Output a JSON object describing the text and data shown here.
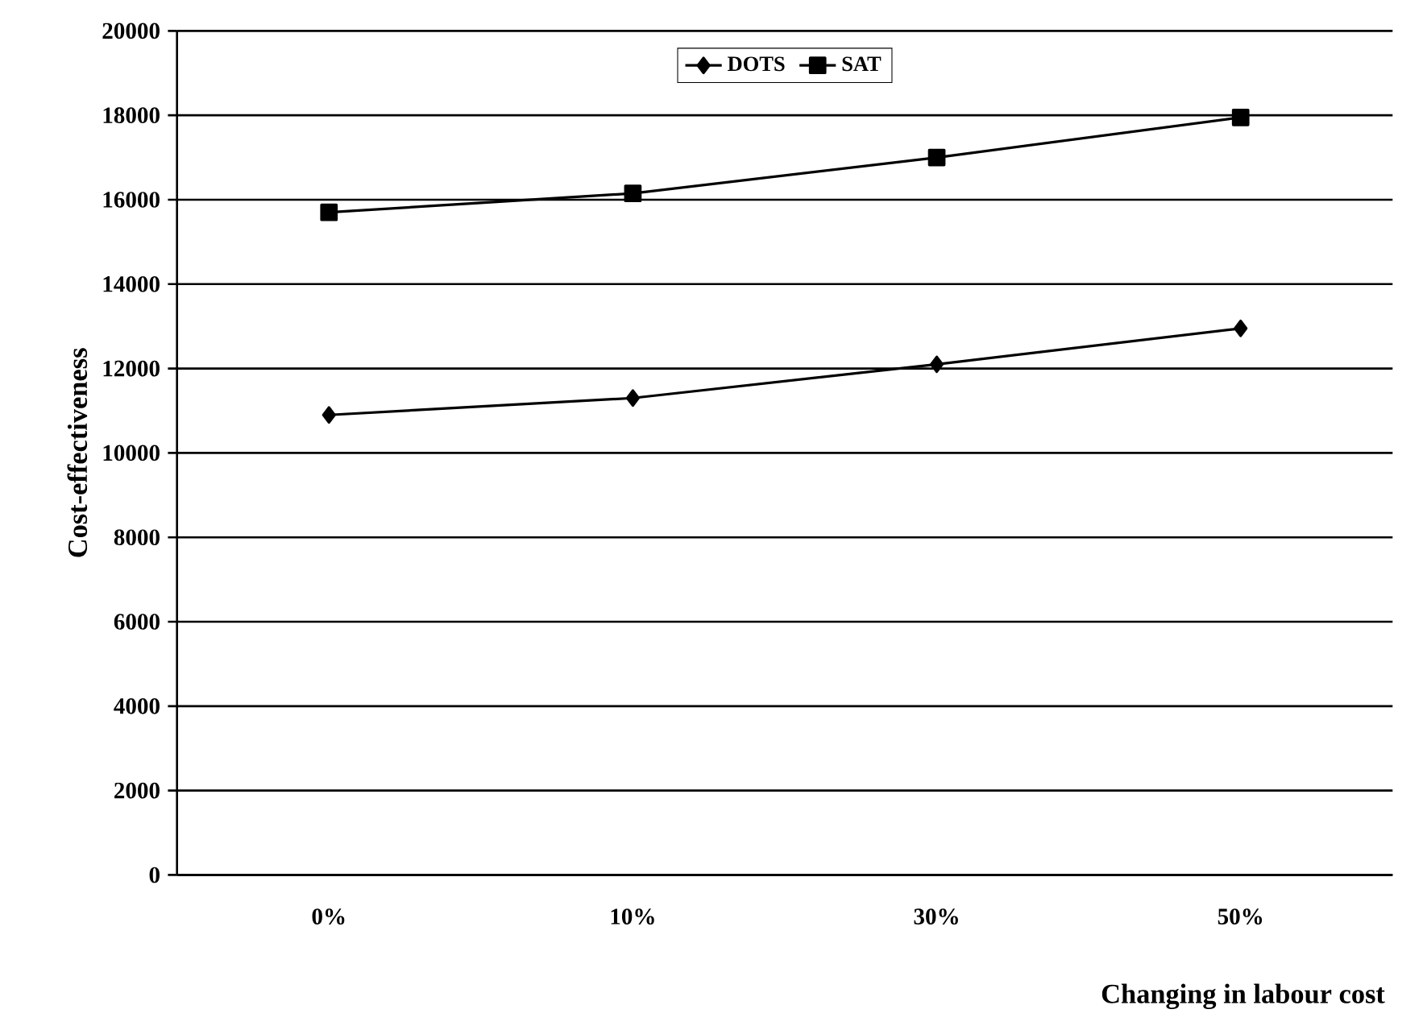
{
  "chart_data": {
    "type": "line",
    "xlabel": "Changing in labour cost",
    "ylabel": "Cost-effectiveness",
    "categories": [
      "0%",
      "10%",
      "30%",
      "50%"
    ],
    "series": [
      {
        "name": "DOTS",
        "color": "#000000",
        "marker": "diamond",
        "values": [
          10900,
          11300,
          12100,
          12950
        ]
      },
      {
        "name": "SAT",
        "color": "#000000",
        "marker": "square",
        "values": [
          15700,
          16150,
          17000,
          17950
        ]
      }
    ],
    "ylim": [
      0,
      20000
    ],
    "yticks": [
      0,
      2000,
      4000,
      6000,
      8000,
      10000,
      12000,
      14000,
      16000,
      18000,
      20000
    ],
    "grid": "y",
    "legend": "top",
    "line_style": "solid"
  }
}
